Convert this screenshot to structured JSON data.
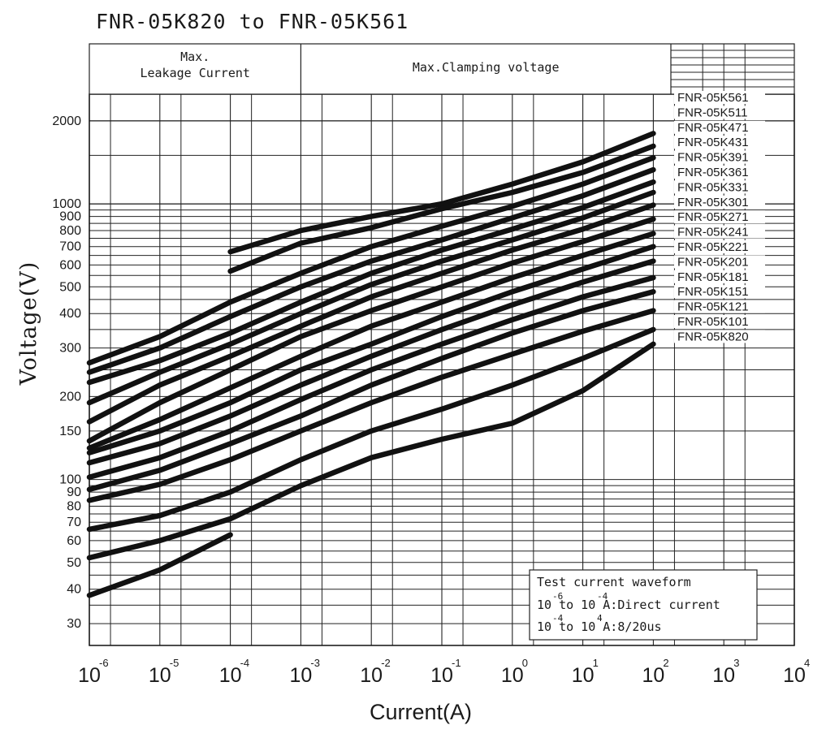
{
  "chart_data": {
    "type": "line",
    "title": "FNR-05K820 to FNR-05K561",
    "xlabel": "Current(A)",
    "ylabel": "Voltage(V)",
    "x_scale": "log",
    "y_scale": "log",
    "xlim": [
      1e-06,
      10000
    ],
    "ylim": [
      25,
      2500
    ],
    "grid": true,
    "x_tick_labels": [
      {
        "base": "10",
        "exp": "-6"
      },
      {
        "base": "10",
        "exp": "-5"
      },
      {
        "base": "10",
        "exp": "-4"
      },
      {
        "base": "10",
        "exp": "-3"
      },
      {
        "base": "10",
        "exp": "-2"
      },
      {
        "base": "10",
        "exp": "-1"
      },
      {
        "base": "10",
        "exp": "0"
      },
      {
        "base": "10",
        "exp": "1"
      },
      {
        "base": "10",
        "exp": "2"
      },
      {
        "base": "10",
        "exp": "3"
      },
      {
        "base": "10",
        "exp": "4"
      }
    ],
    "y_tick_labels": [
      "2000",
      "1000",
      "900",
      "800",
      "700",
      "600",
      "500",
      "400",
      "300",
      "200",
      "150",
      "100",
      "90",
      "80",
      "70",
      "60",
      "50",
      "40",
      "30"
    ],
    "regions": {
      "leakage": [
        "Max.",
        "Leakage Current"
      ],
      "clamping": "Max.Clamping voltage"
    },
    "note": {
      "title": "Test current waveform",
      "line1": {
        "a": "10",
        "a_exp": "-6",
        "mid": " to 10",
        "b_exp": "-4",
        "tail": " A:Direct current"
      },
      "line2": {
        "a": "10",
        "a_exp": "-4",
        "mid": " to 10",
        "b_exp": "4",
        "tail": " A:8/20us"
      }
    },
    "series": [
      {
        "name": "FNR-05K561",
        "points": [
          [
            -4,
            670
          ],
          [
            -3,
            800
          ],
          [
            -2,
            900
          ],
          [
            -1,
            1000
          ],
          [
            0,
            1180
          ],
          [
            1,
            1420
          ],
          [
            2,
            1800
          ]
        ]
      },
      {
        "name": "FNR-05K511",
        "points": [
          [
            -4,
            570
          ],
          [
            -3,
            720
          ],
          [
            -2,
            820
          ],
          [
            -1,
            960
          ],
          [
            0,
            1100
          ],
          [
            1,
            1300
          ],
          [
            2,
            1620
          ]
        ]
      },
      {
        "name": "FNR-05K471",
        "points": [
          [
            -6,
            265
          ],
          [
            -5,
            330
          ],
          [
            -4,
            440
          ],
          [
            -3,
            560
          ],
          [
            -2,
            700
          ],
          [
            -1,
            830
          ],
          [
            0,
            980
          ],
          [
            1,
            1180
          ],
          [
            2,
            1470
          ]
        ]
      },
      {
        "name": "FNR-05K431",
        "points": [
          [
            -6,
            245
          ],
          [
            -5,
            300
          ],
          [
            -4,
            390
          ],
          [
            -3,
            500
          ],
          [
            -2,
            620
          ],
          [
            -1,
            740
          ],
          [
            0,
            890
          ],
          [
            1,
            1070
          ],
          [
            2,
            1330
          ]
        ]
      },
      {
        "name": "FNR-05K391",
        "points": [
          [
            -6,
            225
          ],
          [
            -5,
            270
          ],
          [
            -4,
            340
          ],
          [
            -3,
            440
          ],
          [
            -2,
            560
          ],
          [
            -1,
            680
          ],
          [
            0,
            810
          ],
          [
            1,
            970
          ],
          [
            2,
            1200
          ]
        ]
      },
      {
        "name": "FNR-05K361",
        "points": [
          [
            -6,
            190
          ],
          [
            -5,
            245
          ],
          [
            -4,
            310
          ],
          [
            -3,
            400
          ],
          [
            -2,
            510
          ],
          [
            -1,
            620
          ],
          [
            0,
            740
          ],
          [
            1,
            890
          ],
          [
            2,
            1100
          ]
        ]
      },
      {
        "name": "FNR-05K331",
        "points": [
          [
            -6,
            162
          ],
          [
            -5,
            220
          ],
          [
            -4,
            280
          ],
          [
            -3,
            360
          ],
          [
            -2,
            460
          ],
          [
            -1,
            560
          ],
          [
            0,
            680
          ],
          [
            1,
            810
          ],
          [
            2,
            990
          ]
        ]
      },
      {
        "name": "FNR-05K301",
        "points": [
          [
            -6,
            138
          ],
          [
            -5,
            190
          ],
          [
            -4,
            250
          ],
          [
            -3,
            330
          ],
          [
            -2,
            410
          ],
          [
            -1,
            500
          ],
          [
            0,
            610
          ],
          [
            1,
            730
          ],
          [
            2,
            880
          ]
        ]
      },
      {
        "name": "FNR-05K271",
        "points": [
          [
            -6,
            130
          ],
          [
            -5,
            165
          ],
          [
            -4,
            215
          ],
          [
            -3,
            280
          ],
          [
            -2,
            360
          ],
          [
            -1,
            440
          ],
          [
            0,
            540
          ],
          [
            1,
            650
          ],
          [
            2,
            780
          ]
        ]
      },
      {
        "name": "FNR-05K241",
        "points": [
          [
            -6,
            125
          ],
          [
            -5,
            150
          ],
          [
            -4,
            190
          ],
          [
            -3,
            250
          ],
          [
            -2,
            310
          ],
          [
            -1,
            390
          ],
          [
            0,
            480
          ],
          [
            1,
            580
          ],
          [
            2,
            700
          ]
        ]
      },
      {
        "name": "FNR-05K221",
        "points": [
          [
            -6,
            115
          ],
          [
            -5,
            135
          ],
          [
            -4,
            170
          ],
          [
            -3,
            220
          ],
          [
            -2,
            280
          ],
          [
            -1,
            350
          ],
          [
            0,
            430
          ],
          [
            1,
            520
          ],
          [
            2,
            620
          ]
        ]
      },
      {
        "name": "FNR-05K201",
        "points": [
          [
            -6,
            102
          ],
          [
            -5,
            120
          ],
          [
            -4,
            150
          ],
          [
            -3,
            195
          ],
          [
            -2,
            250
          ],
          [
            -1,
            310
          ],
          [
            0,
            380
          ],
          [
            1,
            460
          ],
          [
            2,
            540
          ]
        ]
      },
      {
        "name": "FNR-05K181",
        "points": [
          [
            -6,
            92
          ],
          [
            -5,
            108
          ],
          [
            -4,
            135
          ],
          [
            -3,
            170
          ],
          [
            -2,
            220
          ],
          [
            -1,
            275
          ],
          [
            0,
            340
          ],
          [
            1,
            410
          ],
          [
            2,
            480
          ]
        ]
      },
      {
        "name": "FNR-05K151",
        "points": [
          [
            -6,
            84
          ],
          [
            -5,
            96
          ],
          [
            -4,
            118
          ],
          [
            -3,
            150
          ],
          [
            -2,
            190
          ],
          [
            -1,
            235
          ],
          [
            0,
            285
          ],
          [
            1,
            345
          ],
          [
            2,
            410
          ]
        ]
      },
      {
        "name": "FNR-05K121",
        "points": [
          [
            -6,
            66
          ],
          [
            -5,
            74
          ],
          [
            -4,
            90
          ],
          [
            -3,
            118
          ],
          [
            -2,
            150
          ],
          [
            -1,
            180
          ],
          [
            0,
            220
          ],
          [
            1,
            275
          ],
          [
            2,
            350
          ]
        ]
      },
      {
        "name": "FNR-05K101",
        "points": [
          [
            -6,
            52
          ],
          [
            -5,
            60
          ],
          [
            -4,
            72
          ],
          [
            -3,
            95
          ],
          [
            -2,
            120
          ],
          [
            -1,
            140
          ],
          [
            0,
            160
          ],
          [
            1,
            210
          ],
          [
            2,
            310
          ]
        ]
      },
      {
        "name": "FNR-05K820",
        "points": [
          [
            -6,
            38
          ],
          [
            -5,
            47
          ],
          [
            -4,
            63
          ]
        ]
      }
    ]
  }
}
